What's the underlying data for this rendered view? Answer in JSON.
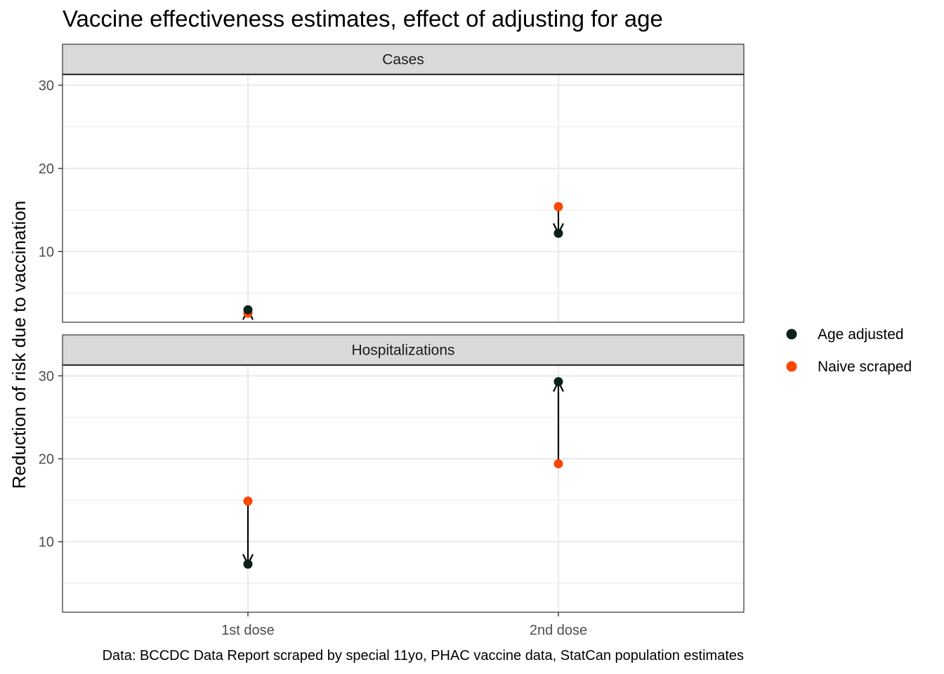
{
  "chart_data": {
    "type": "scatter",
    "title": "Vaccine effectiveness estimates, effect of adjusting for age",
    "ylabel": "Reduction of risk due to vaccination",
    "xlabel": "",
    "caption": "Data: BCCDC Data Report scraped by special 11yo, PHAC vaccine data, StatCan population estimates",
    "categories": [
      "1st dose",
      "2nd dose"
    ],
    "y_ticks": [
      10,
      20,
      30
    ],
    "grid": true,
    "legend_position": "right",
    "series": [
      {
        "name": "Age adjusted",
        "color": "#0d211c"
      },
      {
        "name": "Naive scraped",
        "color": "#ff4500"
      }
    ],
    "panels": [
      {
        "label": "Cases",
        "ylim": [
          1.5,
          31.3
        ],
        "points": [
          {
            "category": "1st dose",
            "naive": 2.6,
            "adjusted": 3.0
          },
          {
            "category": "2nd dose",
            "naive": 15.4,
            "adjusted": 12.2
          }
        ]
      },
      {
        "label": "Hospitalizations",
        "ylim": [
          1.5,
          31.3
        ],
        "points": [
          {
            "category": "1st dose",
            "naive": 14.9,
            "adjusted": 7.3
          },
          {
            "category": "2nd dose",
            "naive": 19.4,
            "adjusted": 29.3
          }
        ]
      }
    ]
  }
}
